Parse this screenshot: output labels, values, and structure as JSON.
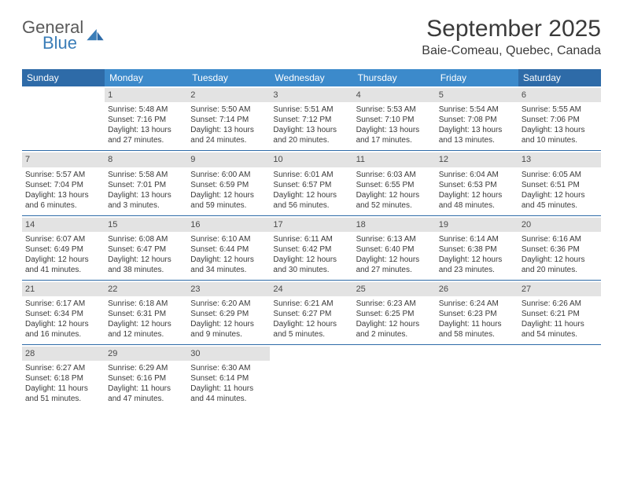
{
  "brand": {
    "part1": "General",
    "part2": "Blue"
  },
  "title": "September 2025",
  "location": "Baie-Comeau, Quebec, Canada",
  "colors": {
    "header_bg": "#3c8acb",
    "header_weekend_bg": "#2e6ba8",
    "header_text": "#ffffff",
    "daynum_bg": "#e3e3e3",
    "text": "#3a3a3a",
    "week_border": "#2e6ba8",
    "logo_blue": "#3a7db8"
  },
  "dayNames": [
    "Sunday",
    "Monday",
    "Tuesday",
    "Wednesday",
    "Thursday",
    "Friday",
    "Saturday"
  ],
  "weeks": [
    [
      {
        "blank": true
      },
      {
        "day": "1",
        "sunrise": "5:48 AM",
        "sunset": "7:16 PM",
        "daylight": "13 hours and 27 minutes."
      },
      {
        "day": "2",
        "sunrise": "5:50 AM",
        "sunset": "7:14 PM",
        "daylight": "13 hours and 24 minutes."
      },
      {
        "day": "3",
        "sunrise": "5:51 AM",
        "sunset": "7:12 PM",
        "daylight": "13 hours and 20 minutes."
      },
      {
        "day": "4",
        "sunrise": "5:53 AM",
        "sunset": "7:10 PM",
        "daylight": "13 hours and 17 minutes."
      },
      {
        "day": "5",
        "sunrise": "5:54 AM",
        "sunset": "7:08 PM",
        "daylight": "13 hours and 13 minutes."
      },
      {
        "day": "6",
        "sunrise": "5:55 AM",
        "sunset": "7:06 PM",
        "daylight": "13 hours and 10 minutes."
      }
    ],
    [
      {
        "day": "7",
        "sunrise": "5:57 AM",
        "sunset": "7:04 PM",
        "daylight": "13 hours and 6 minutes."
      },
      {
        "day": "8",
        "sunrise": "5:58 AM",
        "sunset": "7:01 PM",
        "daylight": "13 hours and 3 minutes."
      },
      {
        "day": "9",
        "sunrise": "6:00 AM",
        "sunset": "6:59 PM",
        "daylight": "12 hours and 59 minutes."
      },
      {
        "day": "10",
        "sunrise": "6:01 AM",
        "sunset": "6:57 PM",
        "daylight": "12 hours and 56 minutes."
      },
      {
        "day": "11",
        "sunrise": "6:03 AM",
        "sunset": "6:55 PM",
        "daylight": "12 hours and 52 minutes."
      },
      {
        "day": "12",
        "sunrise": "6:04 AM",
        "sunset": "6:53 PM",
        "daylight": "12 hours and 48 minutes."
      },
      {
        "day": "13",
        "sunrise": "6:05 AM",
        "sunset": "6:51 PM",
        "daylight": "12 hours and 45 minutes."
      }
    ],
    [
      {
        "day": "14",
        "sunrise": "6:07 AM",
        "sunset": "6:49 PM",
        "daylight": "12 hours and 41 minutes."
      },
      {
        "day": "15",
        "sunrise": "6:08 AM",
        "sunset": "6:47 PM",
        "daylight": "12 hours and 38 minutes."
      },
      {
        "day": "16",
        "sunrise": "6:10 AM",
        "sunset": "6:44 PM",
        "daylight": "12 hours and 34 minutes."
      },
      {
        "day": "17",
        "sunrise": "6:11 AM",
        "sunset": "6:42 PM",
        "daylight": "12 hours and 30 minutes."
      },
      {
        "day": "18",
        "sunrise": "6:13 AM",
        "sunset": "6:40 PM",
        "daylight": "12 hours and 27 minutes."
      },
      {
        "day": "19",
        "sunrise": "6:14 AM",
        "sunset": "6:38 PM",
        "daylight": "12 hours and 23 minutes."
      },
      {
        "day": "20",
        "sunrise": "6:16 AM",
        "sunset": "6:36 PM",
        "daylight": "12 hours and 20 minutes."
      }
    ],
    [
      {
        "day": "21",
        "sunrise": "6:17 AM",
        "sunset": "6:34 PM",
        "daylight": "12 hours and 16 minutes."
      },
      {
        "day": "22",
        "sunrise": "6:18 AM",
        "sunset": "6:31 PM",
        "daylight": "12 hours and 12 minutes."
      },
      {
        "day": "23",
        "sunrise": "6:20 AM",
        "sunset": "6:29 PM",
        "daylight": "12 hours and 9 minutes."
      },
      {
        "day": "24",
        "sunrise": "6:21 AM",
        "sunset": "6:27 PM",
        "daylight": "12 hours and 5 minutes."
      },
      {
        "day": "25",
        "sunrise": "6:23 AM",
        "sunset": "6:25 PM",
        "daylight": "12 hours and 2 minutes."
      },
      {
        "day": "26",
        "sunrise": "6:24 AM",
        "sunset": "6:23 PM",
        "daylight": "11 hours and 58 minutes."
      },
      {
        "day": "27",
        "sunrise": "6:26 AM",
        "sunset": "6:21 PM",
        "daylight": "11 hours and 54 minutes."
      }
    ],
    [
      {
        "day": "28",
        "sunrise": "6:27 AM",
        "sunset": "6:18 PM",
        "daylight": "11 hours and 51 minutes."
      },
      {
        "day": "29",
        "sunrise": "6:29 AM",
        "sunset": "6:16 PM",
        "daylight": "11 hours and 47 minutes."
      },
      {
        "day": "30",
        "sunrise": "6:30 AM",
        "sunset": "6:14 PM",
        "daylight": "11 hours and 44 minutes."
      },
      {
        "blank": true
      },
      {
        "blank": true
      },
      {
        "blank": true
      },
      {
        "blank": true
      }
    ]
  ],
  "labels": {
    "sunrise": "Sunrise:",
    "sunset": "Sunset:",
    "daylight": "Daylight:"
  }
}
